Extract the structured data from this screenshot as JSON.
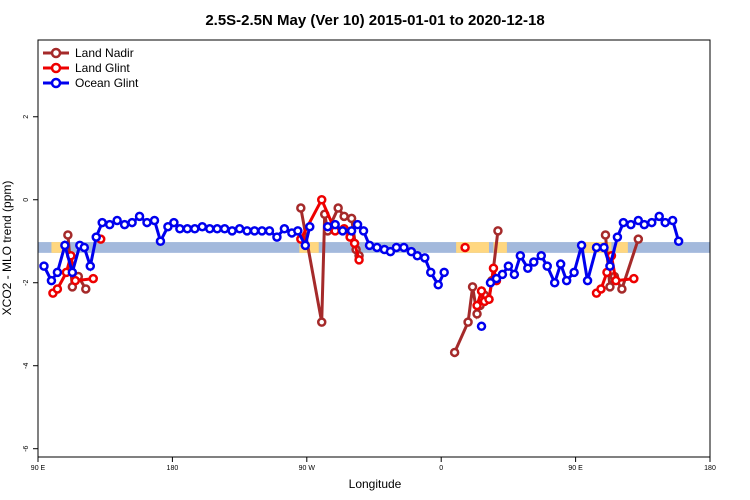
{
  "chart_data": {
    "type": "line",
    "title": "2.5S-2.5N May (Ver 10)   2015-01-01 to 2020-12-18",
    "xlabel": "Longitude",
    "ylabel": "XCO2 - MLO trend (ppm)",
    "x_ticks": [
      {
        "value": 90,
        "label": "90 E"
      },
      {
        "value": 180,
        "label": "180"
      },
      {
        "value": 270,
        "label": "90 W"
      },
      {
        "value": 360,
        "label": "0"
      },
      {
        "value": 450,
        "label": "90 E"
      },
      {
        "value": 540,
        "label": "180"
      }
    ],
    "y_ticks": [
      {
        "value": -6,
        "label": "-6"
      },
      {
        "value": -4,
        "label": "-4"
      },
      {
        "value": -2,
        "label": "-2"
      },
      {
        "value": 0,
        "label": "0"
      },
      {
        "value": 2,
        "label": "2"
      }
    ],
    "xlim": [
      90,
      540
    ],
    "ylim": [
      -6.2,
      3.85
    ],
    "grid": false,
    "legend_position": "top-left",
    "band": {
      "y_center": -1.15,
      "y_half_height": 0.13,
      "land_color": "#FFD780",
      "ocean_color": "#A3B9DC",
      "land_segments": [
        [
          99,
          107
        ],
        [
          265,
          278
        ],
        [
          370,
          392
        ],
        [
          395,
          404
        ],
        [
          456,
          474
        ],
        [
          477,
          485
        ]
      ]
    },
    "series": [
      {
        "name": "Land Nadir",
        "color": "#A52A2A",
        "segments": [
          [
            [
              110,
              -0.85
            ],
            [
              113,
              -2.1
            ],
            [
              117,
              -1.85
            ],
            [
              122,
              -2.15
            ]
          ],
          [
            [
              266,
              -0.2
            ],
            [
              280,
              -2.95
            ],
            [
              282,
              -0.35
            ],
            [
              284,
              -0.75
            ],
            [
              291,
              -0.2
            ],
            [
              295,
              -0.4
            ],
            [
              300,
              -0.45
            ],
            [
              303,
              -1.2
            ],
            [
              305,
              -1.35
            ]
          ],
          [
            [
              369,
              -3.68
            ],
            [
              378,
              -2.95
            ],
            [
              381,
              -2.1
            ],
            [
              384,
              -2.75
            ],
            [
              386,
              -2.55
            ],
            [
              389,
              -2.3
            ],
            [
              392,
              -2.4
            ],
            [
              394,
              -1.95
            ],
            [
              398,
              -0.75
            ]
          ],
          [
            [
              470,
              -0.85
            ],
            [
              473,
              -2.1
            ],
            [
              476,
              -1.85
            ],
            [
              481,
              -2.15
            ],
            [
              492,
              -0.95
            ]
          ]
        ]
      },
      {
        "name": "Land Glint",
        "color": "#EE0000",
        "segments": [
          [
            [
              100,
              -2.25
            ],
            [
              103,
              -2.15
            ],
            [
              109,
              -1.75
            ],
            [
              112,
              -1.35
            ],
            [
              115,
              -1.95
            ],
            [
              127,
              -1.9
            ]
          ],
          [
            [
              132,
              -0.95
            ]
          ],
          [
            [
              266,
              -0.95
            ],
            [
              280,
              0.0
            ],
            [
              289,
              -0.75
            ],
            [
              295,
              -0.7
            ],
            [
              299,
              -0.9
            ],
            [
              302,
              -1.05
            ],
            [
              305,
              -1.45
            ]
          ],
          [
            [
              376,
              -1.15
            ]
          ],
          [
            [
              384,
              -2.55
            ],
            [
              387,
              -2.2
            ],
            [
              389,
              -2.45
            ],
            [
              392,
              -2.4
            ],
            [
              395,
              -1.65
            ],
            [
              397,
              -1.95
            ]
          ],
          [
            [
              464,
              -2.25
            ],
            [
              467,
              -2.15
            ],
            [
              471,
              -1.75
            ],
            [
              474,
              -1.35
            ],
            [
              477,
              -1.95
            ],
            [
              489,
              -1.9
            ]
          ]
        ]
      },
      {
        "name": "Ocean Glint",
        "color": "#0000EE",
        "segments": [
          [
            [
              94,
              -1.6
            ],
            [
              99,
              -1.95
            ],
            [
              103,
              -1.75
            ],
            [
              108,
              -1.1
            ],
            [
              113,
              -1.75
            ],
            [
              118,
              -1.1
            ],
            [
              121,
              -1.15
            ],
            [
              125,
              -1.6
            ],
            [
              129,
              -0.9
            ],
            [
              133,
              -0.55
            ],
            [
              138,
              -0.6
            ],
            [
              143,
              -0.5
            ],
            [
              148,
              -0.6
            ],
            [
              153,
              -0.55
            ],
            [
              158,
              -0.4
            ],
            [
              163,
              -0.55
            ],
            [
              168,
              -0.5
            ],
            [
              172,
              -1.0
            ],
            [
              177,
              -0.65
            ],
            [
              181,
              -0.55
            ],
            [
              185,
              -0.7
            ],
            [
              190,
              -0.7
            ],
            [
              195,
              -0.7
            ],
            [
              200,
              -0.65
            ],
            [
              205,
              -0.7
            ],
            [
              210,
              -0.7
            ],
            [
              215,
              -0.7
            ],
            [
              220,
              -0.75
            ],
            [
              225,
              -0.7
            ],
            [
              230,
              -0.75
            ],
            [
              235,
              -0.75
            ],
            [
              240,
              -0.75
            ],
            [
              245,
              -0.75
            ],
            [
              250,
              -0.9
            ],
            [
              255,
              -0.7
            ],
            [
              260,
              -0.8
            ],
            [
              264,
              -0.75
            ],
            [
              269,
              -1.1
            ],
            [
              272,
              -0.65
            ]
          ],
          [
            [
              284,
              -0.65
            ],
            [
              289,
              -0.6
            ],
            [
              294,
              -0.75
            ],
            [
              300,
              -0.75
            ],
            [
              304,
              -0.6
            ],
            [
              308,
              -0.75
            ],
            [
              312,
              -1.1
            ],
            [
              317,
              -1.15
            ],
            [
              322,
              -1.2
            ],
            [
              326,
              -1.25
            ],
            [
              330,
              -1.15
            ],
            [
              335,
              -1.15
            ],
            [
              340,
              -1.25
            ],
            [
              344,
              -1.35
            ],
            [
              349,
              -1.4
            ],
            [
              353,
              -1.75
            ],
            [
              358,
              -2.05
            ],
            [
              362,
              -1.75
            ]
          ],
          [
            [
              387,
              -3.05
            ]
          ],
          [
            [
              393,
              -2.0
            ],
            [
              397,
              -1.9
            ],
            [
              401,
              -1.8
            ],
            [
              405,
              -1.6
            ],
            [
              409,
              -1.8
            ],
            [
              413,
              -1.35
            ],
            [
              418,
              -1.65
            ],
            [
              422,
              -1.5
            ],
            [
              427,
              -1.35
            ],
            [
              431,
              -1.6
            ],
            [
              436,
              -2.0
            ],
            [
              440,
              -1.55
            ],
            [
              444,
              -1.95
            ],
            [
              449,
              -1.75
            ],
            [
              454,
              -1.1
            ],
            [
              458,
              -1.95
            ],
            [
              464,
              -1.15
            ],
            [
              469,
              -1.15
            ],
            [
              473,
              -1.6
            ],
            [
              478,
              -0.9
            ],
            [
              482,
              -0.55
            ],
            [
              487,
              -0.6
            ],
            [
              492,
              -0.5
            ],
            [
              496,
              -0.6
            ],
            [
              501,
              -0.55
            ],
            [
              506,
              -0.4
            ],
            [
              510,
              -0.55
            ],
            [
              515,
              -0.5
            ],
            [
              519,
              -1.0
            ]
          ]
        ]
      }
    ]
  }
}
